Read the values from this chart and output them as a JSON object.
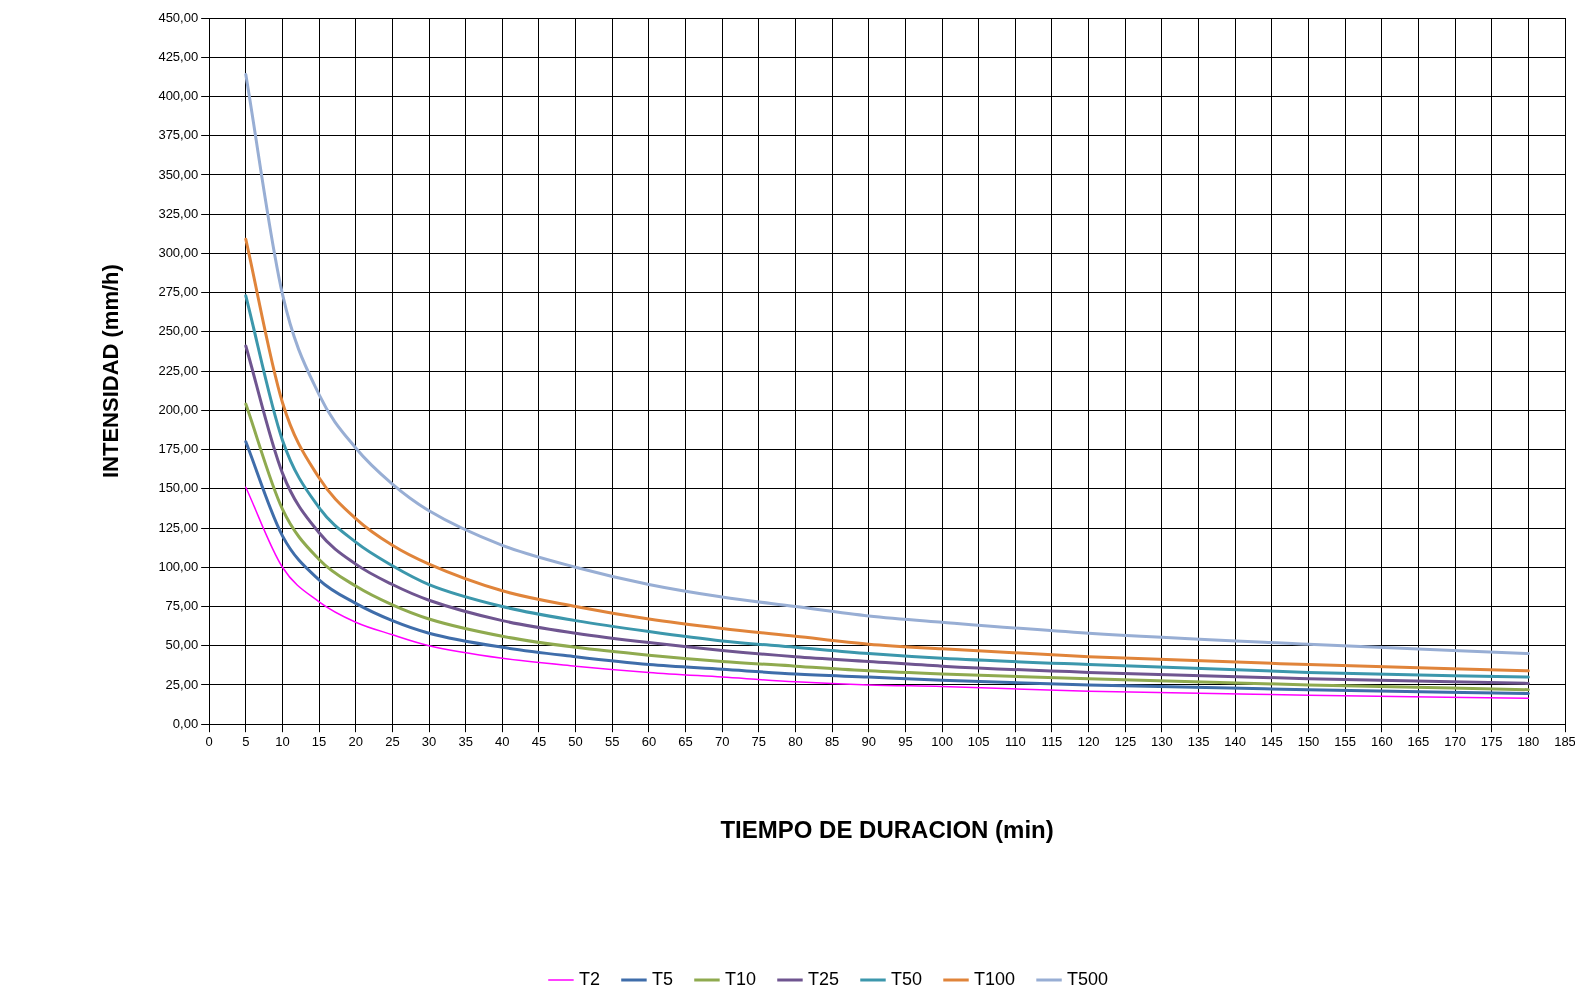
{
  "chart_data": {
    "type": "line",
    "xlabel": "TIEMPO DE DURACION (min)",
    "ylabel": "INTENSIDAD (mm/h)",
    "x": [
      5,
      10,
      15,
      20,
      25,
      30,
      40,
      50,
      60,
      70,
      80,
      90,
      100,
      120,
      150,
      180
    ],
    "series": [
      {
        "name": "T2",
        "color": "#ff00ff",
        "values": [
          151,
          100,
          78,
          65,
          57,
          50,
          42,
          37,
          33,
          30,
          27,
          25,
          24,
          21,
          18.5,
          16.5
        ]
      },
      {
        "name": "T5",
        "color": "#3f6daa",
        "values": [
          180,
          120,
          92,
          77,
          66,
          58,
          49,
          43,
          38,
          35,
          32,
          30,
          28,
          25,
          22,
          19.5
        ]
      },
      {
        "name": "T10",
        "color": "#8faa4f",
        "values": [
          204,
          137,
          105,
          88,
          76,
          67,
          56,
          49,
          44,
          40,
          37,
          34,
          32,
          29,
          25,
          22
        ]
      },
      {
        "name": "T25",
        "color": "#6f5590",
        "values": [
          241,
          160,
          122,
          102,
          89,
          79,
          66,
          58,
          52,
          47,
          43,
          40,
          37,
          33,
          29,
          26
        ]
      },
      {
        "name": "T50",
        "color": "#3c97ac",
        "values": [
          273,
          181,
          138,
          116,
          101,
          89,
          75,
          66,
          59,
          53,
          49,
          45,
          42,
          38,
          33,
          30
        ]
      },
      {
        "name": "T100",
        "color": "#e0843a",
        "values": [
          309,
          205,
          157,
          131,
          114,
          102,
          85,
          75,
          67,
          61,
          56,
          51,
          48,
          43,
          38,
          34
        ]
      },
      {
        "name": "T500",
        "color": "#98aed4",
        "values": [
          414,
          274,
          210,
          176,
          153,
          136,
          114,
          100,
          89,
          81,
          75,
          69,
          65,
          58,
          51,
          45
        ]
      }
    ],
    "xlim": [
      0,
      185
    ],
    "xticks": [
      0,
      5,
      10,
      15,
      20,
      25,
      30,
      35,
      40,
      45,
      50,
      55,
      60,
      65,
      70,
      75,
      80,
      85,
      90,
      95,
      100,
      105,
      110,
      115,
      120,
      125,
      130,
      135,
      140,
      145,
      150,
      155,
      160,
      165,
      170,
      175,
      180,
      185
    ],
    "ylim": [
      0,
      450
    ],
    "yticks": [
      {
        "value": 0,
        "label": "0,00"
      },
      {
        "value": 25,
        "label": "25,00"
      },
      {
        "value": 50,
        "label": "50,00"
      },
      {
        "value": 75,
        "label": "75,00"
      },
      {
        "value": 100,
        "label": "100,00"
      },
      {
        "value": 125,
        "label": "125,00"
      },
      {
        "value": 150,
        "label": "150,00"
      },
      {
        "value": 175,
        "label": "175,00"
      },
      {
        "value": 200,
        "label": "200,00"
      },
      {
        "value": 225,
        "label": "225,00"
      },
      {
        "value": 250,
        "label": "250,00"
      },
      {
        "value": 275,
        "label": "275,00"
      },
      {
        "value": 300,
        "label": "300,00"
      },
      {
        "value": 325,
        "label": "325,00"
      },
      {
        "value": 350,
        "label": "350,00"
      },
      {
        "value": 375,
        "label": "375,00"
      },
      {
        "value": 400,
        "label": "400,00"
      },
      {
        "value": 425,
        "label": "425,00"
      },
      {
        "value": 450,
        "label": "450,00"
      }
    ],
    "grid": true,
    "legend": "bottom",
    "marker": "none",
    "line_style": "solid"
  }
}
